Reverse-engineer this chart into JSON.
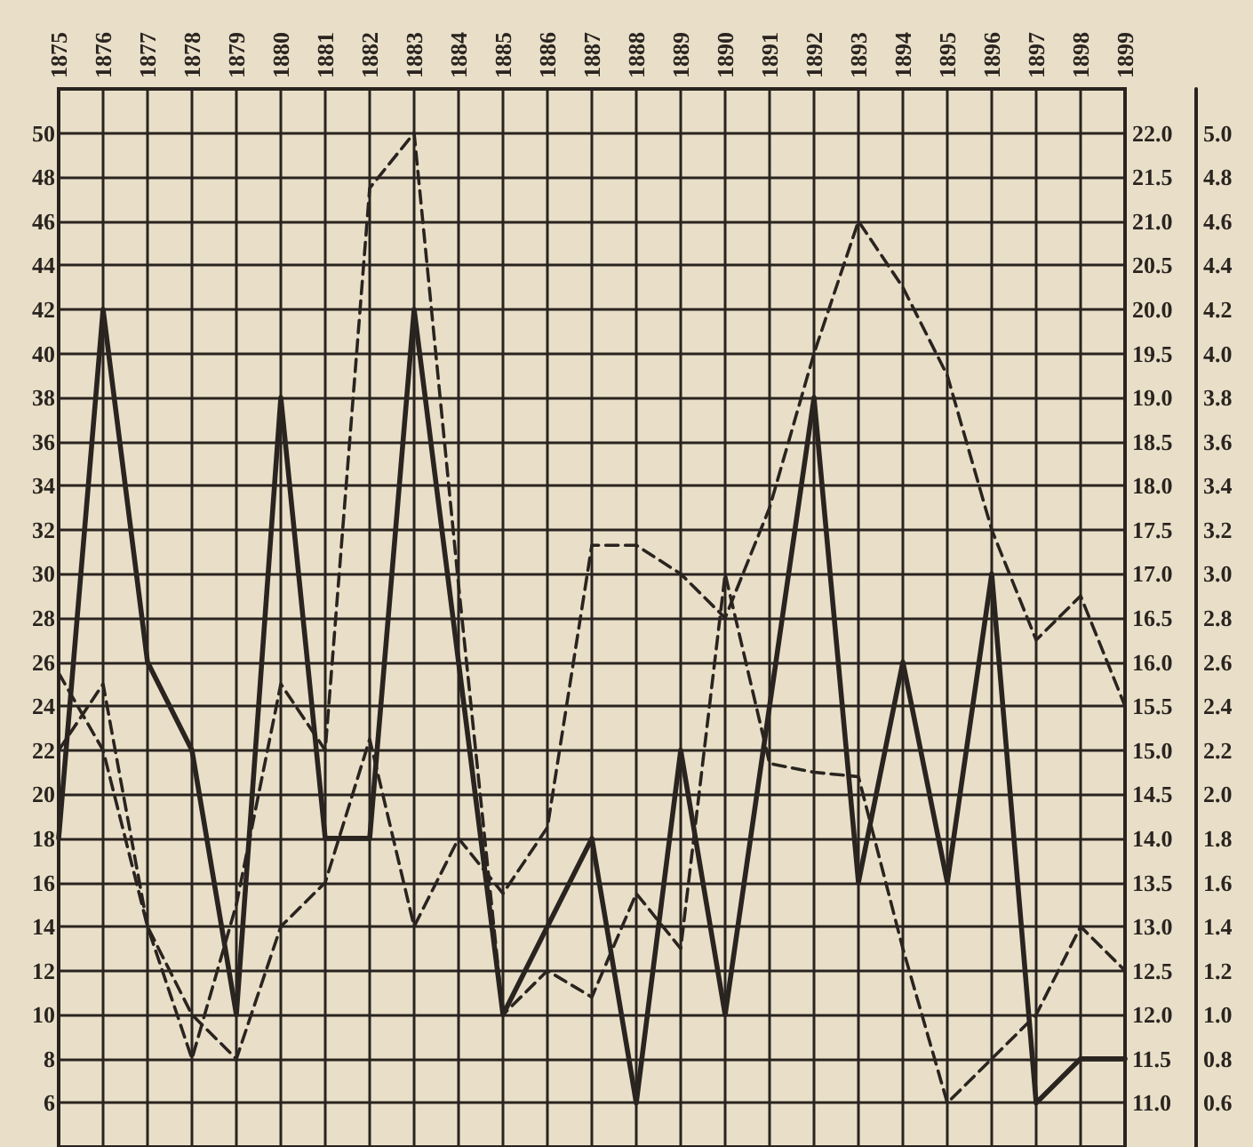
{
  "chart_data": {
    "type": "line",
    "x": [
      1875,
      1876,
      1877,
      1878,
      1879,
      1880,
      1881,
      1882,
      1883,
      1884,
      1885,
      1886,
      1887,
      1888,
      1889,
      1890,
      1891,
      1892,
      1893,
      1894,
      1895,
      1896,
      1897,
      1898,
      1899
    ],
    "series": [
      {
        "color": "#2a2420",
        "line_style": "solid",
        "values": [
          18,
          42,
          26,
          22,
          10,
          38,
          18,
          18,
          42,
          26,
          10,
          14,
          18,
          6,
          22,
          10,
          24,
          38,
          16,
          26,
          16,
          30,
          6,
          8,
          8
        ]
      },
      {
        "color": "#2a2420",
        "line_style": "dashed",
        "values": [
          22,
          25,
          14,
          8,
          15,
          25,
          22,
          47.5,
          50,
          29.5,
          10,
          12,
          10.8,
          15.5,
          13,
          30,
          21.4,
          21,
          20.8,
          13,
          6,
          8,
          10,
          14,
          12
        ]
      },
      {
        "color": "#2a2420",
        "line_style": "dashed",
        "values": [
          25.5,
          22,
          14,
          10,
          8,
          14,
          16,
          22.5,
          14,
          18,
          15.5,
          18.5,
          31.3,
          31.3,
          30,
          28,
          33,
          40,
          46,
          43,
          39,
          32,
          27,
          29,
          24
        ]
      }
    ],
    "xlim": [
      1875,
      1899
    ],
    "xticks": [
      1875,
      1876,
      1877,
      1878,
      1879,
      1880,
      1881,
      1882,
      1883,
      1884,
      1885,
      1886,
      1887,
      1888,
      1889,
      1890,
      1891,
      1892,
      1893,
      1894,
      1895,
      1896,
      1897,
      1898,
      1899
    ],
    "ylim": [
      4,
      52
    ],
    "yticks": [
      6,
      8,
      10,
      12,
      14,
      16,
      18,
      20,
      22,
      24,
      26,
      28,
      30,
      32,
      34,
      36,
      38,
      40,
      42,
      44,
      46,
      48,
      50
    ],
    "y2lim": [
      10.5,
      22.5
    ],
    "y2ticks": [
      {
        "value": 11,
        "label": "11.0"
      },
      11.5,
      {
        "value": 12,
        "label": "12.0"
      },
      12.5,
      {
        "value": 13,
        "label": "13.0"
      },
      13.5,
      {
        "value": 14,
        "label": "14.0"
      },
      14.5,
      {
        "value": 15,
        "label": "15.0"
      },
      15.5,
      {
        "value": 16,
        "label": "16.0"
      },
      16.5,
      {
        "value": 17,
        "label": "17.0"
      },
      17.5,
      {
        "value": 18,
        "label": "18.0"
      },
      18.5,
      {
        "value": 19,
        "label": "19.0"
      },
      19.5,
      {
        "value": 20,
        "label": "20.0"
      },
      20.5,
      {
        "value": 21,
        "label": "21.0"
      },
      21.5,
      {
        "value": 22,
        "label": "22.0"
      }
    ],
    "y3lim": [
      0.4,
      5.2
    ],
    "y3ticks": [
      0.6,
      0.8,
      {
        "value": 1,
        "label": "1.0"
      },
      1.2,
      1.4,
      1.6,
      1.8,
      {
        "value": 2,
        "label": "2.0"
      },
      2.2,
      2.4,
      2.6,
      2.8,
      {
        "value": 3,
        "label": "3.0"
      },
      3.2,
      3.4,
      3.6,
      3.8,
      {
        "value": 4,
        "label": "4.0"
      },
      4.2,
      4.4,
      4.6,
      4.8,
      {
        "value": 5,
        "label": "5.0"
      }
    ],
    "grid": true,
    "marker": "none"
  }
}
